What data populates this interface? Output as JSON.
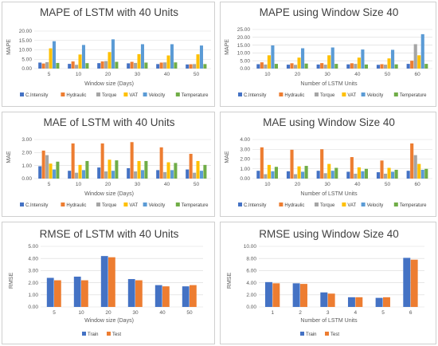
{
  "colors": {
    "C.Intensity": "#4472C4",
    "Hydraulic": "#ED7D31",
    "Torque": "#A5A5A5",
    "VAT": "#FFC000",
    "Velocity": "#5B9BD5",
    "Temperature": "#70AD47",
    "Train": "#4472C4",
    "Test": "#ED7D31",
    "grid": "#d9d9d9",
    "text": "#595959"
  },
  "chart_data": [
    {
      "type": "bar",
      "title": "MAPE of LSTM with 40 Units",
      "xlabel": "Window size (Days)",
      "ylabel": "MAPE",
      "categories": [
        "5",
        "10",
        "20",
        "30",
        "40",
        "50"
      ],
      "yticks": [
        "0.00",
        "5.00",
        "10.00",
        "15.00",
        "20.00"
      ],
      "ylim": [
        0,
        20
      ],
      "legend": "bottom",
      "grid": true,
      "series": [
        {
          "name": "C.Intensity",
          "values": [
            3.2,
            2.5,
            2.9,
            2.8,
            2.4,
            2.2
          ]
        },
        {
          "name": "Hydraulic",
          "values": [
            2.7,
            3.8,
            3.8,
            3.6,
            3.2,
            2.3
          ]
        },
        {
          "name": "Torque",
          "values": [
            3.4,
            2.0,
            4.0,
            3.0,
            3.3,
            2.4
          ]
        },
        {
          "name": "VAT",
          "values": [
            10.8,
            7.5,
            8.8,
            7.7,
            7.0,
            7.6
          ]
        },
        {
          "name": "Velocity",
          "values": [
            14.6,
            12.6,
            15.6,
            13.0,
            13.0,
            12.3
          ]
        },
        {
          "name": "Temperature",
          "values": [
            3.0,
            2.9,
            3.6,
            3.2,
            3.3,
            2.4
          ]
        }
      ]
    },
    {
      "type": "bar",
      "title": "MAPE using Window Size 40",
      "xlabel": "Number of LSTM Units",
      "ylabel": "MAPE",
      "categories": [
        "10",
        "20",
        "30",
        "40",
        "50",
        "60"
      ],
      "yticks": [
        "0.00",
        "5.00",
        "10.00",
        "15.00",
        "20.00",
        "25.00"
      ],
      "ylim": [
        0,
        25
      ],
      "legend": "bottom",
      "grid": true,
      "series": [
        {
          "name": "C.Intensity",
          "values": [
            2.8,
            2.5,
            2.6,
            2.7,
            2.4,
            3.0
          ]
        },
        {
          "name": "Hydraulic",
          "values": [
            4.0,
            3.4,
            3.5,
            3.4,
            2.8,
            5.0
          ]
        },
        {
          "name": "Torque",
          "values": [
            2.6,
            2.4,
            2.5,
            3.0,
            2.5,
            15.6
          ]
        },
        {
          "name": "VAT",
          "values": [
            8.5,
            7.0,
            8.5,
            7.0,
            6.5,
            8.5
          ]
        },
        {
          "name": "Velocity",
          "values": [
            14.8,
            13.0,
            13.5,
            12.2,
            12.0,
            22.0
          ]
        },
        {
          "name": "Temperature",
          "values": [
            3.0,
            3.2,
            3.0,
            2.6,
            2.7,
            3.0
          ]
        }
      ]
    },
    {
      "type": "bar",
      "title": "MAE of LSTM with 40 Units",
      "xlabel": "Window size (Days)",
      "ylabel": "MAE",
      "categories": [
        "5",
        "10",
        "20",
        "30",
        "40",
        "50"
      ],
      "yticks": [
        "0.00",
        "1.00",
        "2.00",
        "3.00"
      ],
      "ylim": [
        0,
        3
      ],
      "legend": "bottom",
      "grid": true,
      "series": [
        {
          "name": "C.Intensity",
          "values": [
            0.95,
            0.6,
            0.85,
            0.8,
            0.65,
            0.7
          ]
        },
        {
          "name": "Hydraulic",
          "values": [
            2.15,
            2.7,
            2.7,
            2.8,
            2.4,
            1.9
          ]
        },
        {
          "name": "Torque",
          "values": [
            1.8,
            0.45,
            0.55,
            0.55,
            0.5,
            0.45
          ]
        },
        {
          "name": "VAT",
          "values": [
            1.15,
            1.05,
            1.45,
            1.35,
            1.25,
            1.35
          ]
        },
        {
          "name": "Velocity",
          "values": [
            0.7,
            0.65,
            0.6,
            0.65,
            0.65,
            0.6
          ]
        },
        {
          "name": "Temperature",
          "values": [
            1.3,
            1.35,
            1.4,
            1.35,
            1.2,
            1.05
          ]
        }
      ]
    },
    {
      "type": "bar",
      "title": "MAE using Window Size 40",
      "xlabel": "Number of LSTM Units",
      "ylabel": "MAE",
      "categories": [
        "10",
        "20",
        "30",
        "40",
        "50",
        "60"
      ],
      "yticks": [
        "0.00",
        "1.00",
        "2.00",
        "3.00",
        "4.00"
      ],
      "ylim": [
        0,
        4
      ],
      "legend": "bottom",
      "grid": true,
      "series": [
        {
          "name": "C.Intensity",
          "values": [
            0.8,
            0.75,
            0.8,
            0.7,
            0.65,
            0.8
          ]
        },
        {
          "name": "Hydraulic",
          "values": [
            3.2,
            2.95,
            3.0,
            2.2,
            1.85,
            3.6
          ]
        },
        {
          "name": "Torque",
          "values": [
            0.45,
            0.45,
            0.55,
            0.5,
            0.5,
            2.4
          ]
        },
        {
          "name": "VAT",
          "values": [
            1.4,
            1.25,
            1.5,
            1.15,
            1.1,
            1.5
          ]
        },
        {
          "name": "Velocity",
          "values": [
            0.75,
            0.7,
            0.8,
            0.75,
            0.7,
            0.9
          ]
        },
        {
          "name": "Temperature",
          "values": [
            1.2,
            1.3,
            1.1,
            1.0,
            0.9,
            1.0
          ]
        }
      ]
    },
    {
      "type": "bar",
      "title": "RMSE of LSTM with 40 Units",
      "xlabel": "Window size (Days)",
      "ylabel": "RMSE",
      "categories": [
        "5",
        "10",
        "20",
        "30",
        "40",
        "50"
      ],
      "yticks": [
        "0.00",
        "1.00",
        "2.00",
        "3.00",
        "4.00",
        "5.00"
      ],
      "ylim": [
        0,
        5
      ],
      "legend": "bottom-left",
      "grid": true,
      "series": [
        {
          "name": "Train",
          "values": [
            2.4,
            2.5,
            4.2,
            2.3,
            1.8,
            1.7
          ]
        },
        {
          "name": "Test",
          "values": [
            2.2,
            2.2,
            4.1,
            2.2,
            1.7,
            1.8
          ]
        }
      ]
    },
    {
      "type": "bar",
      "title": "RMSE using Window Size 40",
      "xlabel": "Number of LSTM Units",
      "ylabel": "RMSE",
      "categories": [
        "1",
        "2",
        "3",
        "4",
        "5",
        "6"
      ],
      "yticks": [
        "0.00",
        "2.00",
        "4.00",
        "6.00",
        "8.00",
        "10.00"
      ],
      "ylim": [
        0,
        10
      ],
      "legend": "bottom-left",
      "grid": true,
      "series": [
        {
          "name": "Train",
          "values": [
            4.1,
            3.9,
            2.4,
            1.6,
            1.5,
            8.1
          ]
        },
        {
          "name": "Test",
          "values": [
            3.9,
            3.8,
            2.2,
            1.6,
            1.6,
            7.8
          ]
        }
      ]
    }
  ]
}
